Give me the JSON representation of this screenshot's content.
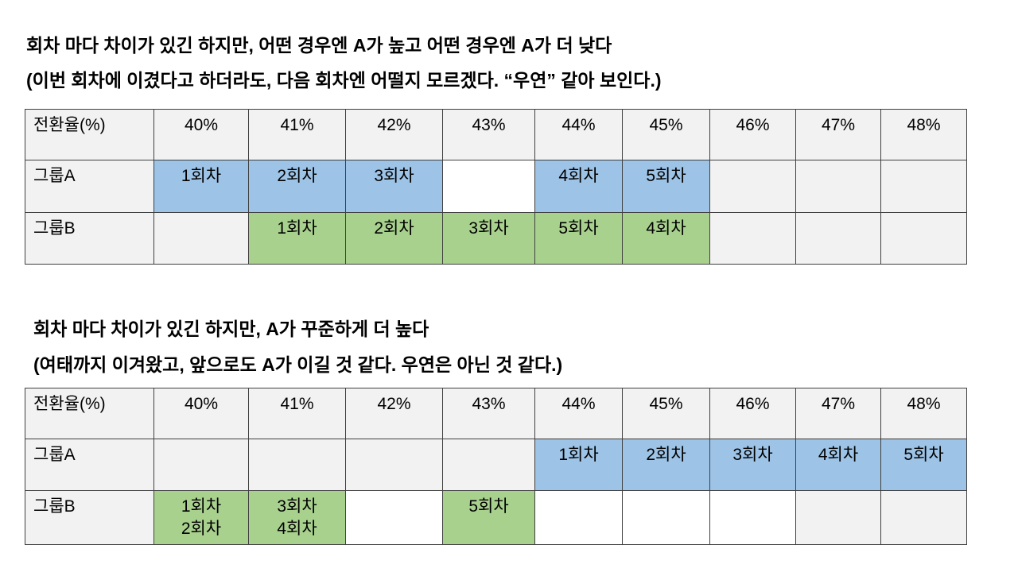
{
  "colors": {
    "group_a_fill": "#9dc3e6",
    "group_b_fill": "#a9d18e",
    "neutral_fill": "#f2f2f2",
    "border": "#404040"
  },
  "sections": [
    {
      "title_line1": "회차 마다 차이가 있긴 하지만, 어떤 경우엔 A가 높고 어떤 경우엔 A가 더 낮다",
      "title_line2": "(이번 회차에 이겼다고 하더라도, 다음 회차엔 어떨지 모르겠다. “우연” 같아 보인다.)",
      "table": {
        "header": {
          "label": "전환율(%)",
          "cells": [
            "40%",
            "41%",
            "42%",
            "43%",
            "44%",
            "45%",
            "46%",
            "47%",
            "48%"
          ]
        },
        "rows": [
          {
            "label": "그룹A",
            "cells": [
              "1회차",
              "2회차",
              "3회차",
              "",
              "4회차",
              "5회차",
              "",
              "",
              ""
            ],
            "fills": [
              "#9dc3e6",
              "#9dc3e6",
              "#9dc3e6",
              "#ffffff",
              "#9dc3e6",
              "#9dc3e6",
              "#f2f2f2",
              "#f2f2f2",
              "#f2f2f2"
            ]
          },
          {
            "label": "그룹B",
            "cells": [
              "",
              "1회차",
              "2회차",
              "3회차",
              "5회차",
              "4회차",
              "",
              "",
              ""
            ],
            "fills": [
              "#f2f2f2",
              "#a9d18e",
              "#a9d18e",
              "#a9d18e",
              "#a9d18e",
              "#a9d18e",
              "#f2f2f2",
              "#f2f2f2",
              "#f2f2f2"
            ]
          }
        ]
      }
    },
    {
      "title_line1": "회차 마다 차이가 있긴 하지만, A가 꾸준하게 더 높다",
      "title_line2": "(여태까지 이겨왔고, 앞으로도 A가 이길 것 같다. 우연은 아닌 것 같다.)",
      "table": {
        "header": {
          "label": "전환율(%)",
          "cells": [
            "40%",
            "41%",
            "42%",
            "43%",
            "44%",
            "45%",
            "46%",
            "47%",
            "48%"
          ]
        },
        "rows": [
          {
            "label": "그룹A",
            "cells": [
              "",
              "",
              "",
              "",
              "1회차",
              "2회차",
              "3회차",
              "4회차",
              "5회차"
            ],
            "fills": [
              "#f2f2f2",
              "#f2f2f2",
              "#f2f2f2",
              "#f2f2f2",
              "#9dc3e6",
              "#9dc3e6",
              "#9dc3e6",
              "#9dc3e6",
              "#9dc3e6"
            ]
          },
          {
            "label": "그룹B",
            "cells": [
              "1회차\n2회차",
              "3회차\n4회차",
              "",
              "5회차",
              "",
              "",
              "",
              "",
              ""
            ],
            "fills": [
              "#a9d18e",
              "#a9d18e",
              "#ffffff",
              "#a9d18e",
              "#ffffff",
              "#ffffff",
              "#ffffff",
              "#f2f2f2",
              "#f2f2f2"
            ]
          }
        ]
      }
    }
  ]
}
